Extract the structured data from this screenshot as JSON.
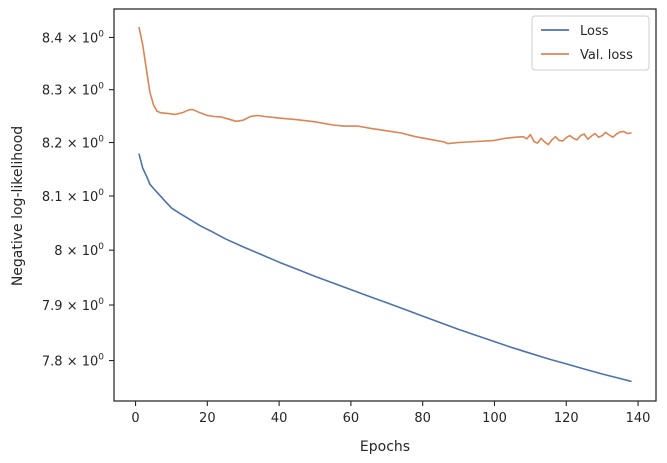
{
  "chart_data": {
    "type": "line",
    "xlabel": "Epochs",
    "ylabel": "Negative log-likelihood",
    "xlim": [
      -6,
      145
    ],
    "ylim": [
      7.728,
      8.455
    ],
    "yscale": "log",
    "grid": false,
    "legend_position": "top-right",
    "xticks": [
      0,
      20,
      40,
      60,
      80,
      100,
      120,
      140
    ],
    "yticks": [
      {
        "value": 7.8,
        "mantissa": "7.8",
        "exp": "0"
      },
      {
        "value": 7.9,
        "mantissa": "7.9",
        "exp": "0"
      },
      {
        "value": 8.0,
        "mantissa": "8",
        "exp": "0"
      },
      {
        "value": 8.1,
        "mantissa": "8.1",
        "exp": "0"
      },
      {
        "value": 8.2,
        "mantissa": "8.2",
        "exp": "0"
      },
      {
        "value": 8.3,
        "mantissa": "8.3",
        "exp": "0"
      },
      {
        "value": 8.4,
        "mantissa": "8.4",
        "exp": "0"
      }
    ],
    "series": [
      {
        "name": "Loss",
        "color": "#4c72b0",
        "points": [
          [
            1,
            8.178
          ],
          [
            2,
            8.152
          ],
          [
            3,
            8.138
          ],
          [
            4,
            8.122
          ],
          [
            5,
            8.114
          ],
          [
            6,
            8.107
          ],
          [
            8,
            8.092
          ],
          [
            10,
            8.078
          ],
          [
            12,
            8.069
          ],
          [
            15,
            8.057
          ],
          [
            18,
            8.045
          ],
          [
            21,
            8.035
          ],
          [
            25,
            8.021
          ],
          [
            30,
            8.006
          ],
          [
            35,
            7.992
          ],
          [
            40,
            7.978
          ],
          [
            45,
            7.965
          ],
          [
            50,
            7.952
          ],
          [
            55,
            7.94
          ],
          [
            60,
            7.928
          ],
          [
            65,
            7.916
          ],
          [
            70,
            7.904
          ],
          [
            75,
            7.892
          ],
          [
            80,
            7.88
          ],
          [
            85,
            7.868
          ],
          [
            90,
            7.856
          ],
          [
            95,
            7.845
          ],
          [
            100,
            7.834
          ],
          [
            105,
            7.823
          ],
          [
            110,
            7.813
          ],
          [
            115,
            7.803
          ],
          [
            120,
            7.794
          ],
          [
            125,
            7.785
          ],
          [
            130,
            7.776
          ],
          [
            135,
            7.768
          ],
          [
            138,
            7.763
          ]
        ]
      },
      {
        "name": "Val. loss",
        "color": "#dd8452",
        "points": [
          [
            1,
            8.419
          ],
          [
            2,
            8.386
          ],
          [
            3,
            8.34
          ],
          [
            4,
            8.295
          ],
          [
            5,
            8.271
          ],
          [
            6,
            8.259
          ],
          [
            7,
            8.256
          ],
          [
            9,
            8.255
          ],
          [
            11,
            8.253
          ],
          [
            13,
            8.256
          ],
          [
            15,
            8.262
          ],
          [
            16,
            8.262
          ],
          [
            18,
            8.256
          ],
          [
            20,
            8.251
          ],
          [
            22,
            8.249
          ],
          [
            24,
            8.248
          ],
          [
            26,
            8.244
          ],
          [
            28,
            8.24
          ],
          [
            30,
            8.242
          ],
          [
            32,
            8.249
          ],
          [
            34,
            8.251
          ],
          [
            36,
            8.249
          ],
          [
            40,
            8.246
          ],
          [
            45,
            8.243
          ],
          [
            50,
            8.239
          ],
          [
            55,
            8.233
          ],
          [
            58,
            8.231
          ],
          [
            62,
            8.231
          ],
          [
            66,
            8.226
          ],
          [
            70,
            8.222
          ],
          [
            74,
            8.218
          ],
          [
            78,
            8.211
          ],
          [
            82,
            8.206
          ],
          [
            86,
            8.201
          ],
          [
            87,
            8.198
          ],
          [
            90,
            8.2
          ],
          [
            95,
            8.202
          ],
          [
            100,
            8.204
          ],
          [
            103,
            8.208
          ],
          [
            106,
            8.21
          ],
          [
            108,
            8.211
          ],
          [
            109,
            8.207
          ],
          [
            110,
            8.215
          ],
          [
            111,
            8.202
          ],
          [
            112,
            8.199
          ],
          [
            113,
            8.208
          ],
          [
            114,
            8.201
          ],
          [
            115,
            8.196
          ],
          [
            116,
            8.205
          ],
          [
            117,
            8.211
          ],
          [
            118,
            8.204
          ],
          [
            119,
            8.203
          ],
          [
            120,
            8.209
          ],
          [
            121,
            8.213
          ],
          [
            122,
            8.208
          ],
          [
            123,
            8.205
          ],
          [
            124,
            8.213
          ],
          [
            125,
            8.216
          ],
          [
            126,
            8.206
          ],
          [
            127,
            8.212
          ],
          [
            128,
            8.217
          ],
          [
            129,
            8.21
          ],
          [
            130,
            8.213
          ],
          [
            131,
            8.219
          ],
          [
            132,
            8.214
          ],
          [
            133,
            8.21
          ],
          [
            134,
            8.216
          ],
          [
            135,
            8.22
          ],
          [
            136,
            8.221
          ],
          [
            137,
            8.217
          ],
          [
            138,
            8.218
          ]
        ]
      }
    ]
  }
}
